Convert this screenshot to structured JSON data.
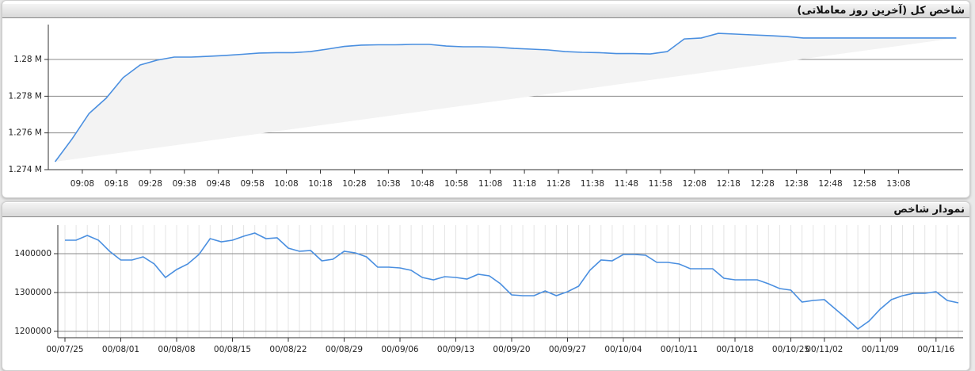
{
  "chart_data": [
    {
      "type": "line",
      "title": "شاخص کل (آخرین روز معاملاتی)",
      "color": "#4a8fe0",
      "area": true,
      "area_color": "#f3f3f3",
      "grid": true,
      "xgrid": false,
      "x": [
        "09:00",
        "09:05",
        "09:10",
        "09:15",
        "09:20",
        "09:25",
        "09:30",
        "09:35",
        "09:40",
        "09:45",
        "09:50",
        "09:55",
        "10:00",
        "10:05",
        "10:10",
        "10:15",
        "10:20",
        "10:25",
        "10:30",
        "10:35",
        "10:40",
        "10:45",
        "10:50",
        "10:55",
        "11:00",
        "11:05",
        "11:10",
        "11:15",
        "11:20",
        "11:25",
        "11:30",
        "11:35",
        "11:40",
        "11:45",
        "11:50",
        "11:55",
        "12:00",
        "12:05",
        "12:10",
        "12:15",
        "12:20",
        "12:25",
        "12:30",
        "12:35",
        "12:40",
        "12:45",
        "12:50",
        "12:55",
        "13:00",
        "13:05",
        "13:10",
        "13:15",
        "13:20",
        "13:25"
      ],
      "values": [
        1274430,
        1275680,
        1277060,
        1277890,
        1279010,
        1279700,
        1279960,
        1280130,
        1280130,
        1280170,
        1280220,
        1280280,
        1280350,
        1280370,
        1280370,
        1280430,
        1280560,
        1280710,
        1280780,
        1280800,
        1280800,
        1280820,
        1280820,
        1280730,
        1280690,
        1280690,
        1280670,
        1280600,
        1280560,
        1280520,
        1280430,
        1280390,
        1280370,
        1280320,
        1280320,
        1280300,
        1280430,
        1281120,
        1281170,
        1281420,
        1281380,
        1281340,
        1281300,
        1281250,
        1281170,
        1281170,
        1281170,
        1281170,
        1281170,
        1281170,
        1281170,
        1281170,
        1281170,
        1281170
      ],
      "xlim": [
        "08:58",
        "13:27"
      ],
      "xticks": [
        "09:08",
        "09:18",
        "09:28",
        "09:38",
        "09:48",
        "09:58",
        "10:08",
        "10:18",
        "10:28",
        "10:38",
        "10:48",
        "10:58",
        "11:08",
        "11:18",
        "11:28",
        "11:38",
        "11:48",
        "11:58",
        "12:08",
        "12:18",
        "12:28",
        "12:38",
        "12:48",
        "12:58",
        "13:08"
      ],
      "ylim": [
        1274000,
        1281900
      ],
      "yticks": [
        {
          "value": 1274000,
          "label": "1.274 M"
        },
        {
          "value": 1276000,
          "label": "1.276 M"
        },
        {
          "value": 1278000,
          "label": "1.278 M"
        },
        {
          "value": 1280000,
          "label": "1.28 M"
        }
      ]
    },
    {
      "type": "line",
      "title": "نمودار شاخص",
      "color": "#4a8fe0",
      "area": false,
      "grid": true,
      "xgrid": true,
      "categories": [
        "00/07/25",
        null,
        null,
        null,
        null,
        "00/08/01",
        null,
        null,
        null,
        null,
        "00/08/08",
        null,
        null,
        null,
        null,
        "00/08/15",
        null,
        null,
        null,
        null,
        "00/08/22",
        null,
        null,
        null,
        null,
        "00/08/29",
        null,
        null,
        null,
        null,
        "00/09/06",
        null,
        null,
        null,
        null,
        "00/09/13",
        null,
        null,
        null,
        null,
        "00/09/20",
        null,
        null,
        null,
        null,
        "00/09/27",
        null,
        null,
        null,
        null,
        "00/10/04",
        null,
        null,
        null,
        null,
        "00/10/11",
        null,
        null,
        null,
        null,
        "00/10/18",
        null,
        null,
        null,
        null,
        "00/10/25",
        null,
        null,
        "00/11/02",
        null,
        null,
        null,
        null,
        "00/11/09",
        null,
        null,
        null,
        null,
        "00/11/16",
        null,
        null
      ],
      "values": [
        1434700,
        1434700,
        1447000,
        1434700,
        1406100,
        1383700,
        1383700,
        1391900,
        1373500,
        1338800,
        1359200,
        1373500,
        1398000,
        1438800,
        1430600,
        1434700,
        1444900,
        1453100,
        1438800,
        1440800,
        1414300,
        1406100,
        1408200,
        1381600,
        1385700,
        1406100,
        1402100,
        1391900,
        1365300,
        1365300,
        1363300,
        1357200,
        1338800,
        1332700,
        1340800,
        1338800,
        1334700,
        1347000,
        1342900,
        1322500,
        1293900,
        1291800,
        1291800,
        1304100,
        1291800,
        1302100,
        1316300,
        1357200,
        1383700,
        1381600,
        1398000,
        1398000,
        1395900,
        1377600,
        1377600,
        1373500,
        1361200,
        1361200,
        1361200,
        1336700,
        1332700,
        1332700,
        1332700,
        1322500,
        1310200,
        1306100,
        1275500,
        1279600,
        1281600,
        1257100,
        1232700,
        1206100,
        1226500,
        1257100,
        1281600,
        1291800,
        1298000,
        1298000,
        1302100,
        1279600,
        1273500
      ],
      "ylim": [
        1183700,
        1473500
      ],
      "yticks": [
        1200000,
        1300000,
        1400000
      ]
    }
  ]
}
